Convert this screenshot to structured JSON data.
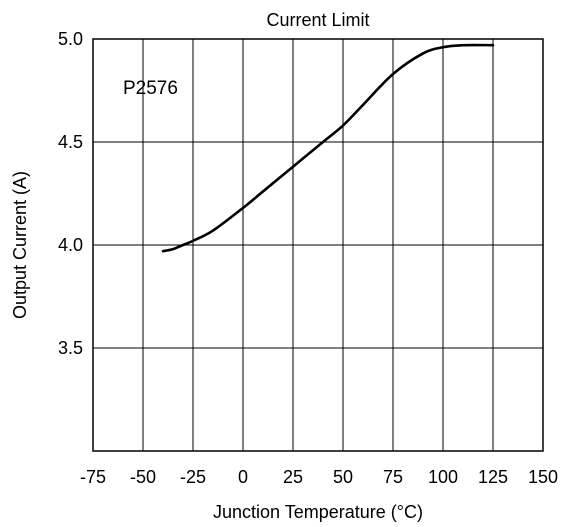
{
  "chart_data": {
    "type": "line",
    "title": "Current Limit",
    "xlabel": "Junction Temperature (°C)",
    "ylabel": "Output Current (A)",
    "annotation": "P2576",
    "xlim": [
      -75,
      150
    ],
    "ylim": [
      3.0,
      5.0
    ],
    "x_ticks": [
      -75,
      -50,
      -25,
      0,
      25,
      50,
      75,
      100,
      125,
      150
    ],
    "y_ticks": [
      5.0,
      4.5,
      4.0,
      3.5
    ],
    "y_tick_labels": [
      "5.0",
      "4.5",
      "4.0",
      "3.5"
    ],
    "grid": true,
    "series": [
      {
        "x": [
          -40,
          -35,
          -30,
          -25,
          -15,
          0,
          10,
          25,
          40,
          50,
          60,
          75,
          90,
          100,
          110,
          125
        ],
        "y": [
          3.97,
          3.98,
          4.0,
          4.02,
          4.07,
          4.18,
          4.26,
          4.38,
          4.5,
          4.58,
          4.68,
          4.83,
          4.93,
          4.96,
          4.97,
          4.97
        ]
      }
    ]
  }
}
